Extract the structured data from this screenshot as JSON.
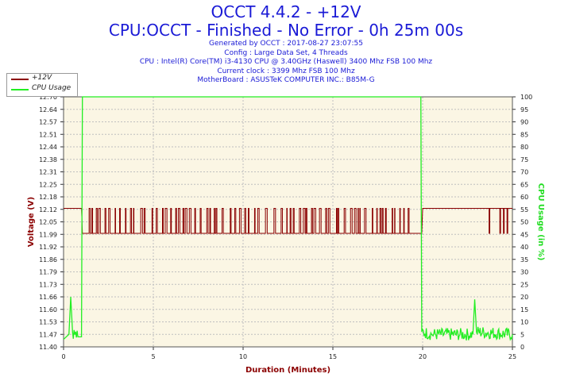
{
  "header": {
    "title_line1": "OCCT 4.4.2 - +12V",
    "title_line2": "CPU:OCCT - Finished - No Error - 0h 25m 00s",
    "info_lines": [
      "Generated by OCCT : 2017-08-27 23:07:55",
      "Config : Large Data Set, 4 Threads",
      "CPU : Intel(R) Core(TM) i3-4130 CPU @ 3.40GHz (Haswell) 3400 Mhz FSB 100 Mhz",
      "Current clock : 3399 Mhz FSB 100 Mhz",
      "MotherBoard : ASUSTeK COMPUTER INC.: B85M-G"
    ]
  },
  "colors": {
    "voltage": "#8b0000",
    "cpu_usage": "#22ee22",
    "plot_background": "#fbf6e4",
    "grid": "#bfbfbf",
    "axis_label_left": "#8b0000",
    "axis_label_right": "#22dd22"
  },
  "chart_data": {
    "type": "line",
    "xlabel": "Duration (Minutes)",
    "ylabel": "Voltage (V)",
    "y2label": "CPU Usage (in %)",
    "xlim": [
      0,
      25
    ],
    "ylim": [
      11.4,
      12.7
    ],
    "y2lim": [
      0,
      100
    ],
    "x_ticks": [
      "0",
      "5",
      "10",
      "15",
      "20",
      "25"
    ],
    "y_ticks": [
      "12.70",
      "12.64",
      "12.57",
      "12.51",
      "12.44",
      "12.38",
      "12.31",
      "12.25",
      "12.18",
      "12.12",
      "12.05",
      "11.99",
      "11.92",
      "11.86",
      "11.79",
      "11.73",
      "11.66",
      "11.60",
      "11.53",
      "11.47",
      "11.40"
    ],
    "y2_ticks": [
      "100",
      "95",
      "90",
      "85",
      "80",
      "75",
      "70",
      "65",
      "60",
      "55",
      "50",
      "45",
      "40",
      "35",
      "30",
      "25",
      "20",
      "15",
      "10",
      "5",
      "0"
    ],
    "grid": true,
    "legend_position": "top-left",
    "series": [
      {
        "name": "+12V",
        "axis": "left",
        "values": [
          [
            0,
            12.12
          ],
          [
            1.0,
            12.12
          ],
          [
            1.05,
            11.99
          ],
          [
            19.95,
            11.99
          ],
          [
            20.0,
            12.12
          ],
          [
            25,
            12.12
          ]
        ],
        "noise_band": [
          12.12,
          11.99
        ],
        "noise_range": [
          1.2,
          19.2
        ]
      },
      {
        "name": "CPU Usage",
        "axis": "right",
        "values": [
          [
            0,
            3
          ],
          [
            0.3,
            5
          ],
          [
            0.4,
            20
          ],
          [
            0.5,
            6
          ],
          [
            0.8,
            4
          ],
          [
            1.0,
            4
          ],
          [
            1.05,
            100
          ],
          [
            19.9,
            100
          ],
          [
            19.95,
            6
          ],
          [
            20.5,
            5
          ],
          [
            22.8,
            5
          ],
          [
            22.9,
            19
          ],
          [
            23.0,
            6
          ],
          [
            25,
            5
          ]
        ]
      }
    ]
  }
}
